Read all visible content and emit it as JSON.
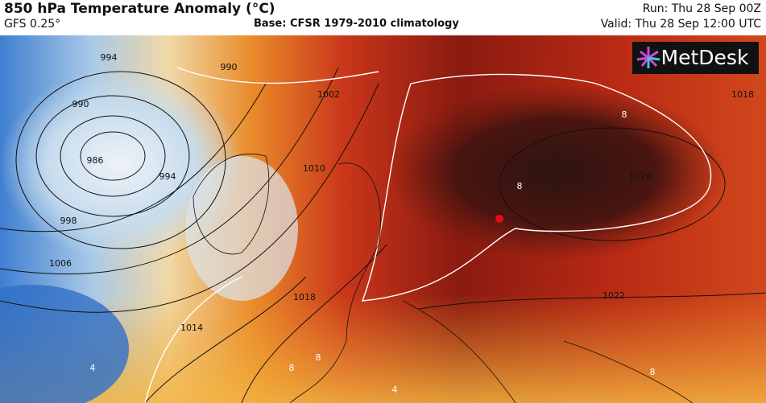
{
  "header": {
    "title": "850 hPa Temperature Anomaly (°C)",
    "model": "GFS 0.25°",
    "base": "Base: CFSR 1979-2010 climatology",
    "run": "Run: Thu 28 Sep 00Z",
    "valid": "Valid: Thu 28 Sep 12:00 UTC"
  },
  "logo": {
    "text": "MetDesk"
  },
  "map": {
    "isobar_labels": [
      "994",
      "990",
      "990",
      "986",
      "994",
      "998",
      "1006",
      "1002",
      "1010",
      "1018",
      "1014",
      "1018",
      "1026",
      "1022"
    ],
    "anomaly_labels": [
      "8",
      "8",
      "8",
      "8",
      "4",
      "4",
      "8"
    ]
  }
}
